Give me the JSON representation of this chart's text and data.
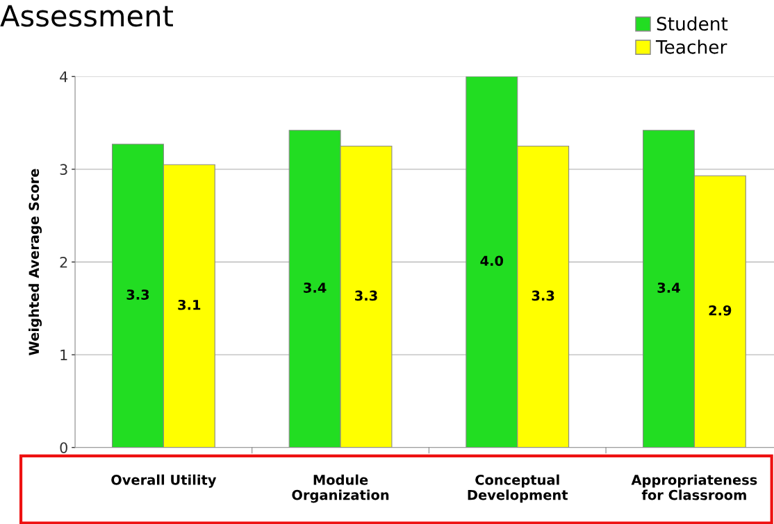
{
  "chart_data": {
    "type": "bar",
    "title": "Assessment",
    "ylabel": "Weighted Average Score",
    "categories": [
      "Overall Utility",
      "Module\nOrganization",
      "Conceptual\nDevelopment",
      "Appropriateness\nfor Classroom"
    ],
    "series": [
      {
        "name": "Student",
        "color": "#22dd22",
        "values": [
          3.27,
          3.42,
          4.0,
          3.42
        ],
        "value_labels": [
          "3.3",
          "3.4",
          "4.0",
          "3.4"
        ]
      },
      {
        "name": "Teacher",
        "color": "#ffff00",
        "values": [
          3.05,
          3.25,
          3.25,
          2.93
        ],
        "value_labels": [
          "3.1",
          "3.3",
          "3.3",
          "2.9"
        ]
      }
    ],
    "ylim": [
      0,
      4
    ],
    "yticks": [
      0,
      1,
      2,
      3,
      4
    ],
    "grid": "y",
    "legend": "top right"
  }
}
